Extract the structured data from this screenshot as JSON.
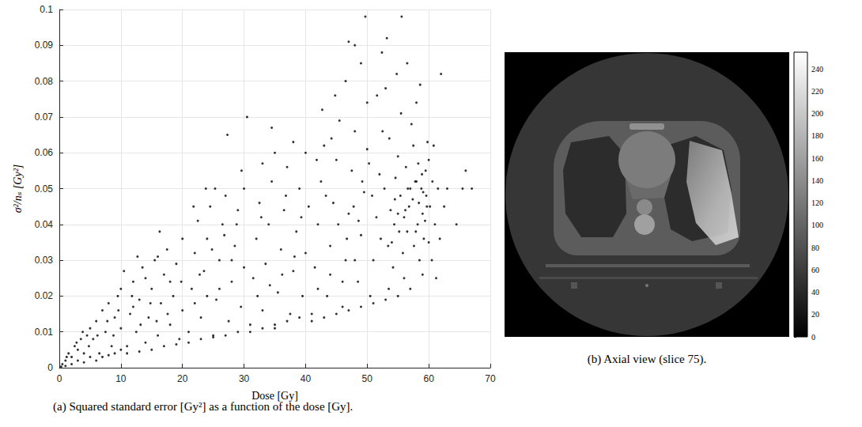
{
  "chart_data": [
    {
      "type": "scatter",
      "caption": "(a) Squared standard error [Gy²] as a function of the dose [Gy].",
      "x_label": "Dose [Gy]",
      "y_label": "σ²/nₛ [Gy²]",
      "xlim": [
        0,
        70
      ],
      "xticks": [
        0,
        10,
        20,
        30,
        40,
        50,
        60,
        70
      ],
      "ylim": [
        0,
        0.1
      ],
      "yticks": [
        0,
        0.01,
        0.02,
        0.03,
        0.04,
        0.05,
        0.06,
        0.07,
        0.08,
        0.09,
        0.1
      ],
      "grid": true,
      "color": "#000000",
      "marker": "circle",
      "x": [
        0.5,
        1,
        1.5,
        2,
        2.5,
        3,
        3.5,
        4,
        4.5,
        5,
        1,
        2,
        3,
        4,
        5,
        0.3,
        1.2,
        2.8,
        3.8,
        4.8,
        5.5,
        6,
        6.5,
        7,
        7.5,
        8,
        8.5,
        9,
        9.5,
        10,
        6,
        7,
        8,
        9,
        10,
        6.2,
        7.8,
        8.8,
        9.6,
        10,
        11,
        11.5,
        12,
        12.5,
        13,
        13.5,
        14,
        14.5,
        15,
        15.5,
        16,
        16.5,
        17,
        17.5,
        18,
        18.5,
        19,
        19.5,
        20,
        20,
        11,
        13,
        15,
        17,
        19,
        12,
        14,
        16,
        18,
        19.8,
        13.2,
        15.8,
        17.6,
        14.8,
        11.8,
        10.5,
        12.7,
        16.3,
        21,
        21.5,
        22,
        22.5,
        23,
        23.5,
        24,
        24.5,
        25,
        25.5,
        26,
        26.5,
        27,
        27.5,
        28,
        28.5,
        29,
        29.5,
        30,
        30,
        21,
        23,
        25,
        27,
        29,
        22,
        24,
        26,
        28,
        22.8,
        24.8,
        26.8,
        28.8,
        27.3,
        25.3,
        29.6,
        21.8,
        23.8,
        31,
        31.5,
        32,
        32.5,
        33,
        33.5,
        34,
        34.5,
        35,
        35.5,
        36,
        36.5,
        37,
        37.5,
        38,
        38.5,
        39,
        39.5,
        40,
        40,
        31,
        33,
        35,
        37,
        39,
        32.2,
        34.2,
        36.2,
        38.2,
        33,
        35,
        34.5,
        30.5,
        38,
        36.8,
        39.3,
        32.8,
        41,
        41.5,
        42,
        42.5,
        43,
        43.5,
        44,
        44.5,
        45,
        45.5,
        46,
        46.5,
        47,
        47.5,
        48,
        48.5,
        49,
        49.5,
        50,
        50,
        41,
        43,
        45,
        47,
        49,
        42,
        44,
        46,
        48,
        46.5,
        47,
        48,
        49,
        42.7,
        44.8,
        49.7,
        43.3,
        45.3,
        47.8,
        49.2,
        41.8,
        46.7,
        48.6,
        44.2,
        40.5,
        50.5,
        51,
        51.5,
        52,
        52.5,
        53,
        53.5,
        54,
        54.5,
        55,
        55.5,
        56,
        56.5,
        57,
        57.5,
        58,
        58.5,
        59,
        59.5,
        60,
        60,
        51,
        53,
        55,
        57,
        59,
        50.8,
        52.2,
        53.8,
        55.2,
        56.8,
        58.2,
        59.6,
        52.8,
        54.6,
        56.3,
        57.8,
        58.8,
        59.2,
        55.8,
        54.2,
        52.4,
        53.2,
        55.6,
        54.8,
        56.5,
        58.6,
        51.6,
        57.2,
        53.6,
        50.3,
        59.8,
        57.6,
        58.4,
        59.4,
        56,
        55.4,
        54.4,
        53.4,
        56.2,
        57.4,
        58,
        58.9,
        59.7,
        55,
        56.6,
        57.9,
        59.1,
        58.3,
        60.5,
        61,
        61.5,
        62,
        60.8,
        61.2,
        63,
        62.5,
        64.5,
        65.5,
        66,
        67,
        60.2,
        61.8,
        60.6
      ],
      "values": [
        0.001,
        0.002,
        0.004,
        0.003,
        0.006,
        0.005,
        0.008,
        0.004,
        0.009,
        0.011,
        0.0005,
        0.001,
        0.002,
        0.0015,
        0.003,
        0.0003,
        0.003,
        0.007,
        0.01,
        0.006,
        0.008,
        0.013,
        0.004,
        0.016,
        0.01,
        0.018,
        0.006,
        0.014,
        0.02,
        0.011,
        0.002,
        0.003,
        0.0035,
        0.004,
        0.005,
        0.009,
        0.013,
        0.009,
        0.016,
        0.022,
        0.006,
        0.015,
        0.024,
        0.01,
        0.019,
        0.028,
        0.007,
        0.014,
        0.022,
        0.03,
        0.009,
        0.018,
        0.026,
        0.033,
        0.012,
        0.02,
        0.029,
        0.008,
        0.016,
        0.036,
        0.004,
        0.0045,
        0.005,
        0.006,
        0.0065,
        0.017,
        0.025,
        0.031,
        0.024,
        0.024,
        0.012,
        0.013,
        0.015,
        0.018,
        0.02,
        0.027,
        0.031,
        0.038,
        0.01,
        0.022,
        0.032,
        0.041,
        0.014,
        0.027,
        0.036,
        0.045,
        0.009,
        0.019,
        0.03,
        0.04,
        0.048,
        0.013,
        0.024,
        0.034,
        0.044,
        0.017,
        0.028,
        0.05,
        0.007,
        0.008,
        0.0085,
        0.009,
        0.01,
        0.018,
        0.02,
        0.022,
        0.03,
        0.026,
        0.033,
        0.037,
        0.04,
        0.065,
        0.05,
        0.055,
        0.045,
        0.05,
        0.012,
        0.025,
        0.036,
        0.046,
        0.016,
        0.029,
        0.04,
        0.052,
        0.011,
        0.021,
        0.033,
        0.044,
        0.056,
        0.015,
        0.027,
        0.038,
        0.05,
        0.02,
        0.032,
        0.06,
        0.01,
        0.011,
        0.012,
        0.013,
        0.014,
        0.02,
        0.023,
        0.026,
        0.031,
        0.057,
        0.06,
        0.067,
        0.07,
        0.063,
        0.048,
        0.042,
        0.042,
        0.015,
        0.028,
        0.04,
        0.052,
        0.062,
        0.02,
        0.034,
        0.046,
        0.058,
        0.069,
        0.017,
        0.03,
        0.043,
        0.055,
        0.066,
        0.024,
        0.037,
        0.049,
        0.061,
        0.074,
        0.013,
        0.014,
        0.015,
        0.016,
        0.017,
        0.022,
        0.026,
        0.024,
        0.03,
        0.08,
        0.091,
        0.09,
        0.085,
        0.072,
        0.076,
        0.098,
        0.048,
        0.04,
        0.045,
        0.052,
        0.058,
        0.036,
        0.041,
        0.064,
        0.045,
        0.02,
        0.03,
        0.042,
        0.054,
        0.066,
        0.078,
        0.022,
        0.035,
        0.047,
        0.059,
        0.071,
        0.025,
        0.038,
        0.05,
        0.062,
        0.074,
        0.03,
        0.043,
        0.055,
        0.035,
        0.058,
        0.018,
        0.019,
        0.02,
        0.022,
        0.026,
        0.048,
        0.036,
        0.044,
        0.038,
        0.045,
        0.04,
        0.048,
        0.05,
        0.053,
        0.056,
        0.052,
        0.05,
        0.036,
        0.032,
        0.028,
        0.088,
        0.092,
        0.098,
        0.082,
        0.085,
        0.079,
        0.076,
        0.068,
        0.064,
        0.057,
        0.063,
        0.034,
        0.046,
        0.041,
        0.042,
        0.048,
        0.04,
        0.034,
        0.044,
        0.047,
        0.052,
        0.054,
        0.045,
        0.043,
        0.05,
        0.038,
        0.049,
        0.057,
        0.03,
        0.04,
        0.05,
        0.082,
        0.062,
        0.025,
        0.05,
        0.045,
        0.04,
        0.05,
        0.055,
        0.05,
        0.045,
        0.036,
        0.052
      ]
    },
    {
      "type": "image",
      "caption": "(b) Axial view (slice 75).",
      "colorbar": {
        "range": [
          0,
          255
        ],
        "ticks": [
          0,
          20,
          40,
          60,
          80,
          100,
          120,
          140,
          160,
          180,
          200,
          220,
          240
        ]
      }
    }
  ]
}
